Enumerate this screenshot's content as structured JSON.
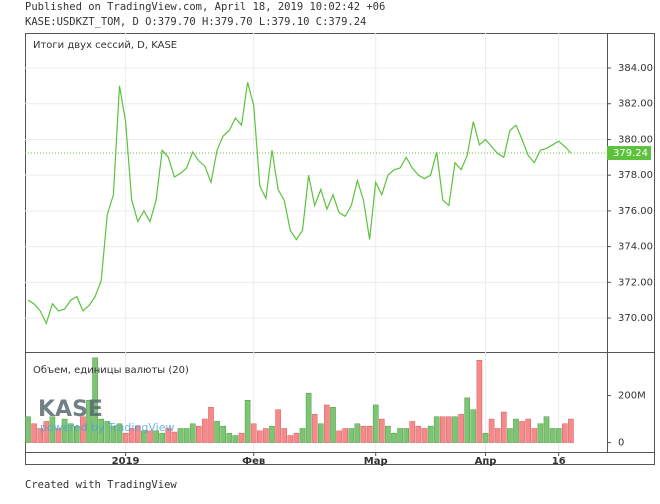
{
  "header": {
    "published": "Published on TradingView.com, April 18, 2019 10:02:42 +06",
    "symbol_line": "KASE:USDKZT_TOM, D O:379.70 H:379.70 L:379.10 C:379.24"
  },
  "watermark": {
    "logo": "KASE",
    "tagline": "powered by TradingView"
  },
  "footer": "Created with TradingView",
  "chart_data": [
    {
      "type": "line",
      "title": "Итоги двух сессий, D, KASE",
      "color": "#5cc23c",
      "categories": [
        null,
        null,
        null,
        null,
        null,
        null,
        null,
        null,
        null,
        null,
        null,
        null,
        null,
        null,
        null,
        null,
        "2019",
        null,
        null,
        null,
        null,
        null,
        null,
        null,
        null,
        null,
        null,
        null,
        null,
        null,
        null,
        null,
        null,
        null,
        null,
        null,
        null,
        "Фев",
        null,
        null,
        null,
        null,
        null,
        null,
        null,
        null,
        null,
        null,
        null,
        null,
        null,
        null,
        null,
        null,
        null,
        null,
        null,
        "Мар",
        null,
        null,
        null,
        null,
        null,
        null,
        null,
        null,
        null,
        null,
        null,
        null,
        null,
        null,
        null,
        null,
        null,
        "Апр",
        null,
        null,
        null,
        null,
        null,
        null,
        null,
        null,
        null,
        null,
        null,
        "16",
        null,
        null
      ],
      "values": [
        371.0,
        370.8,
        370.4,
        369.7,
        370.8,
        370.4,
        370.5,
        371.0,
        371.2,
        370.4,
        370.7,
        371.2,
        372.1,
        375.8,
        376.9,
        383.0,
        381.0,
        376.6,
        375.4,
        376.0,
        375.4,
        376.6,
        379.4,
        379.0,
        377.9,
        378.1,
        378.4,
        379.3,
        378.8,
        378.5,
        377.6,
        379.4,
        380.2,
        380.5,
        381.2,
        380.8,
        383.2,
        381.9,
        377.4,
        376.7,
        379.4,
        377.2,
        376.6,
        374.9,
        374.4,
        374.9,
        378.0,
        376.3,
        377.2,
        376.1,
        376.9,
        375.9,
        375.7,
        376.3,
        377.7,
        376.6,
        374.4,
        377.6,
        376.9,
        378.0,
        378.3,
        378.4,
        379.0,
        378.4,
        378.0,
        377.8,
        378.0,
        379.3,
        376.6,
        376.3,
        378.7,
        378.3,
        379.1,
        381.0,
        379.7,
        380.0,
        379.6,
        379.2,
        379.0,
        380.5,
        380.8,
        380.0,
        379.1,
        378.7,
        379.4,
        379.5,
        379.7,
        379.9,
        379.6,
        379.24
      ],
      "ylim": [
        368.1,
        385.96
      ],
      "yticks": [
        {
          "value": 370,
          "label": "370.00"
        },
        {
          "value": 372,
          "label": "372.00"
        },
        {
          "value": 374,
          "label": "374.00"
        },
        {
          "value": 376,
          "label": "376.00"
        },
        {
          "value": 378,
          "label": "378.00"
        },
        {
          "value": 380,
          "label": "380.00"
        },
        {
          "value": 382,
          "label": "382.00"
        },
        {
          "value": 384,
          "label": "384.00"
        }
      ],
      "grid": true,
      "last_value_color": "#5cc23c"
    },
    {
      "type": "bar",
      "title": "Объем, единицы валюты (20)",
      "up_color": "#7dc573",
      "down_color": "#f48a8a",
      "values": [
        110000000,
        80000000,
        60000000,
        90000000,
        110000000,
        60000000,
        100000000,
        80000000,
        70000000,
        110000000,
        180000000,
        360000000,
        100000000,
        90000000,
        70000000,
        80000000,
        40000000,
        60000000,
        70000000,
        50000000,
        50000000,
        50000000,
        40000000,
        60000000,
        45000000,
        60000000,
        60000000,
        80000000,
        70000000,
        100000000,
        150000000,
        90000000,
        70000000,
        40000000,
        30000000,
        40000000,
        180000000,
        80000000,
        50000000,
        60000000,
        70000000,
        140000000,
        60000000,
        30000000,
        40000000,
        60000000,
        210000000,
        120000000,
        80000000,
        160000000,
        150000000,
        50000000,
        60000000,
        60000000,
        80000000,
        70000000,
        70000000,
        160000000,
        100000000,
        70000000,
        40000000,
        60000000,
        60000000,
        90000000,
        70000000,
        60000000,
        70000000,
        110000000,
        110000000,
        110000000,
        110000000,
        120000000,
        190000000,
        140000000,
        350000000,
        40000000,
        100000000,
        60000000,
        130000000,
        60000000,
        100000000,
        90000000,
        100000000,
        60000000,
        80000000,
        110000000,
        60000000,
        60000000,
        80000000,
        100000000
      ],
      "ylim": [
        -40000000,
        385000000
      ],
      "yticks": [
        0,
        {
          "value": 200000000,
          "label": "200M"
        }
      ]
    }
  ]
}
